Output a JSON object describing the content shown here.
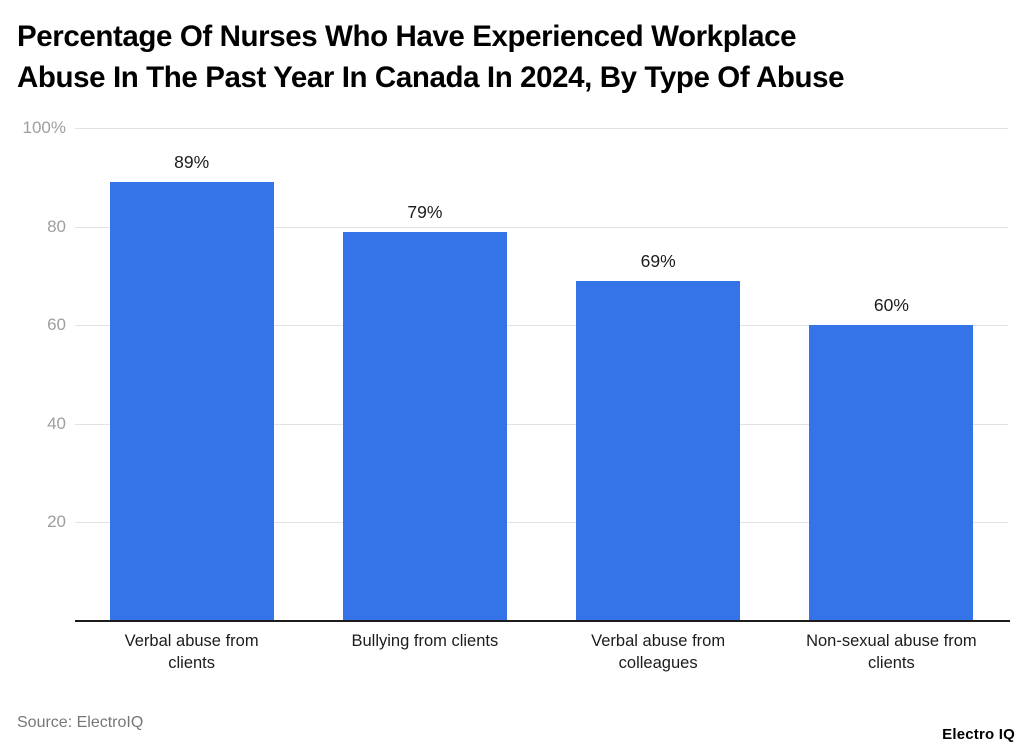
{
  "title": "Percentage Of Nurses Who Have Experienced Workplace Abuse In The Past Year In Canada In 2024, By Type Of Abuse",
  "title_lines": [
    "Percentage Of Nurses Who Have Experienced Workplace",
    "Abuse In The Past Year In Canada In 2024, By Type Of Abuse"
  ],
  "source": "Source: ElectroIQ",
  "brand": "Electro IQ",
  "colors": {
    "bar": "#3473E8",
    "grid": "#e3e3e3",
    "axis": "#1c1c1c",
    "tick_label": "#9e9e9e",
    "data_label": "#1c1c1c",
    "category_label": "#1c1c1c",
    "source_text": "#777777",
    "title_text": "#000000",
    "background": "#ffffff"
  },
  "chart_data": {
    "type": "bar",
    "title": "Percentage Of Nurses Who Have Experienced Workplace Abuse In The Past Year In Canada In 2024, By Type Of Abuse",
    "categories": [
      "Verbal abuse from clients",
      "Bullying from clients",
      "Verbal abuse from colleagues",
      "Non-sexual abuse from clients"
    ],
    "values": [
      89,
      79,
      69,
      60
    ],
    "value_labels": [
      "89%",
      "79%",
      "69%",
      "60%"
    ],
    "yticks": [
      {
        "value": 100,
        "label": "100%"
      },
      {
        "value": 80,
        "label": "80"
      },
      {
        "value": 60,
        "label": "60"
      },
      {
        "value": 40,
        "label": "40"
      },
      {
        "value": 20,
        "label": "20"
      }
    ],
    "ylim": [
      0,
      100
    ],
    "xlabel": "",
    "ylabel": "",
    "grid": true,
    "legend": "none",
    "bar_color": "#3473E8"
  }
}
